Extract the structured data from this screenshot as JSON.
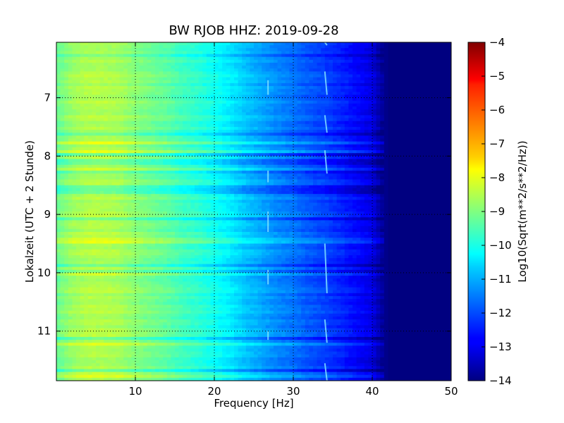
{
  "chart_data": {
    "type": "heatmap",
    "title": "BW RJOB HHZ: 2019-09-28",
    "xlabel": "Frequency [Hz]",
    "ylabel": "Lokalzeit (UTC + 2 Stunde)",
    "xlim": [
      0,
      50
    ],
    "ylim": [
      11.85,
      6.05
    ],
    "x_ticks": [
      10,
      20,
      30,
      40,
      50
    ],
    "y_ticks": [
      7,
      8,
      9,
      10,
      11
    ],
    "grid": true,
    "colormap": "jet",
    "colorbar": {
      "label": "Log10(Sqrt(m**2/s**2/Hz))",
      "range": [
        -14,
        -4
      ],
      "ticks": [
        -4,
        -5,
        -6,
        -7,
        -8,
        -9,
        -10,
        -11,
        -12,
        -13,
        -14
      ]
    },
    "spectrum_profile": {
      "frequency": [
        0,
        2,
        4,
        6,
        8,
        10,
        12,
        14,
        16,
        18,
        20,
        22,
        24,
        26,
        28,
        30,
        32,
        34,
        36,
        38,
        40,
        41,
        42,
        45,
        50
      ],
      "value": [
        -9.2,
        -8.7,
        -8.5,
        -8.5,
        -8.6,
        -8.9,
        -9.1,
        -9.3,
        -9.6,
        -9.8,
        -10.1,
        -10.4,
        -10.8,
        -11.1,
        -11.4,
        -11.6,
        -11.9,
        -12.1,
        -12.4,
        -12.7,
        -13.0,
        -13.6,
        -14.0,
        -14.0,
        -14.0
      ]
    },
    "annotations": [
      {
        "type": "spectral-line",
        "frequency": 26.8,
        "time_ranges": [
          [
            6.7,
            6.95
          ],
          [
            8.25,
            8.45
          ],
          [
            8.95,
            9.3
          ],
          [
            9.95,
            10.2
          ],
          [
            11.0,
            11.15
          ]
        ]
      },
      {
        "type": "spectral-line",
        "frequency": 34.0,
        "time_ranges": [
          [
            6.05,
            6.1
          ],
          [
            6.55,
            6.95
          ],
          [
            7.3,
            7.6
          ],
          [
            7.9,
            8.3
          ],
          [
            9.5,
            10.35
          ],
          [
            10.8,
            11.2
          ],
          [
            11.55,
            11.85
          ]
        ]
      }
    ]
  }
}
